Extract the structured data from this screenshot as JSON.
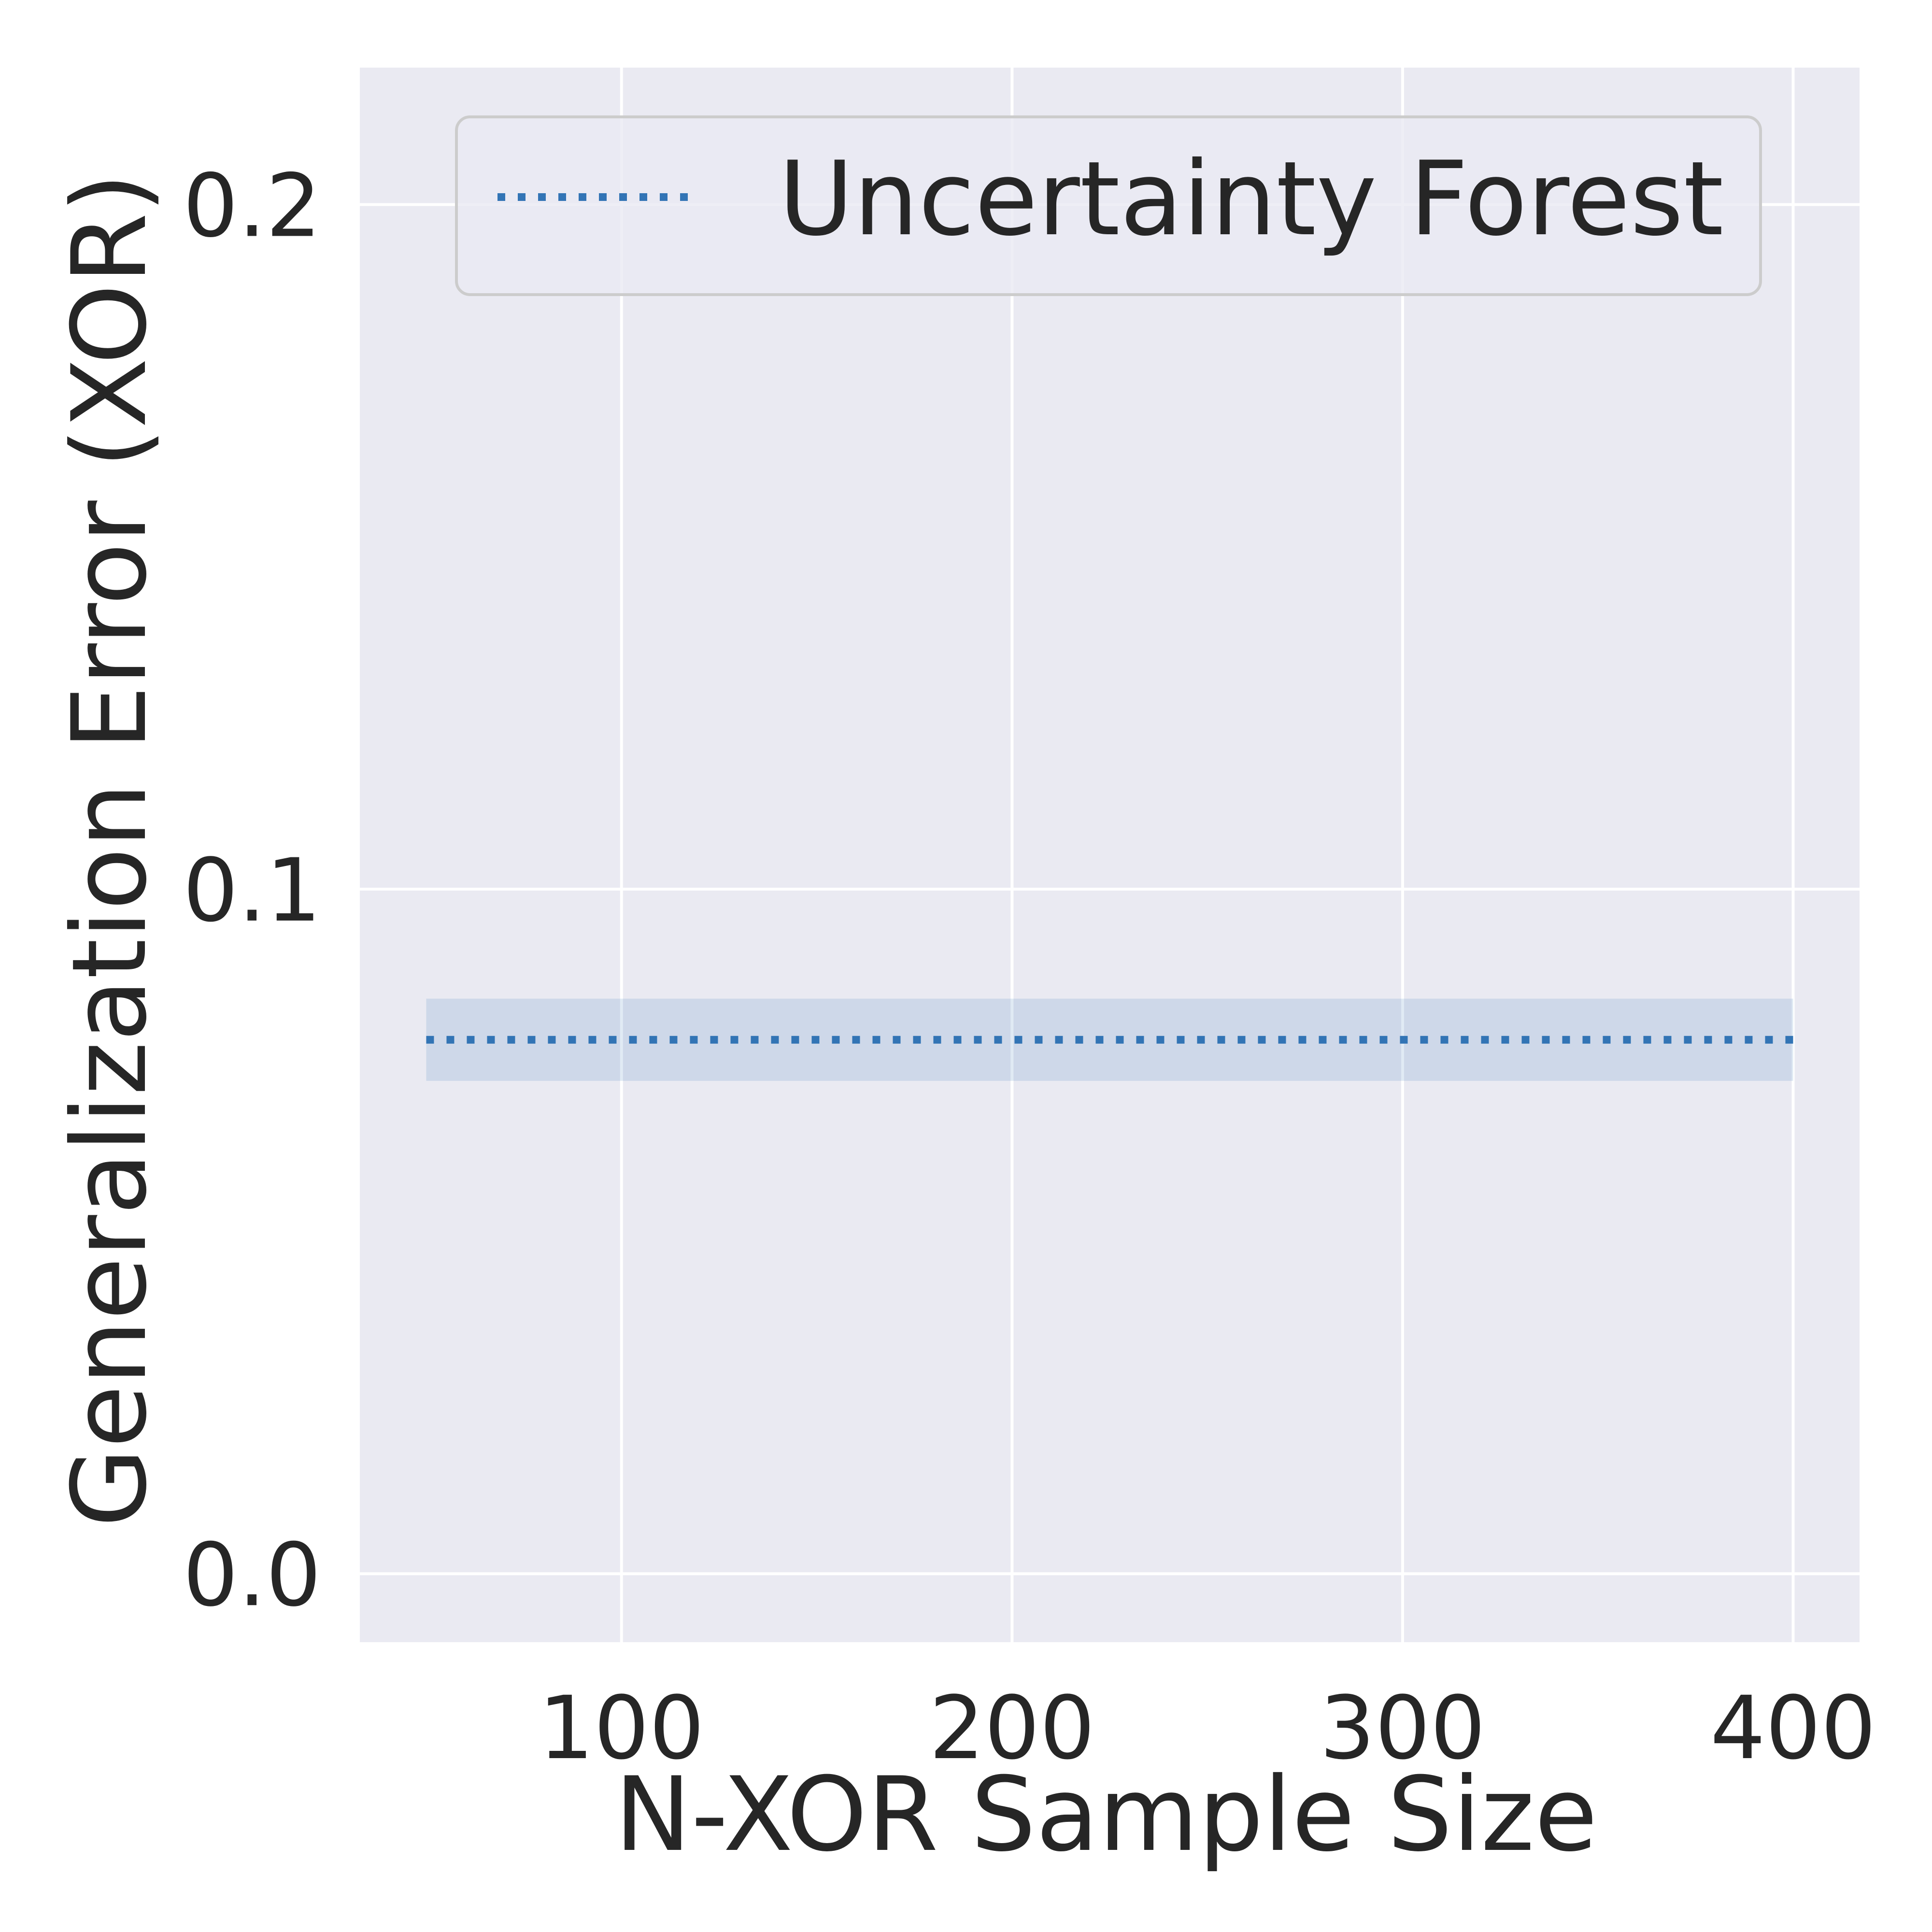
{
  "chart_data": {
    "type": "line",
    "xlabel": "N-XOR Sample Size",
    "ylabel": "Generalization Error (XOR)",
    "xlim": [
      33,
      417
    ],
    "ylim": [
      -0.01,
      0.22
    ],
    "xticks": [
      100,
      200,
      300,
      400
    ],
    "xtick_labels": [
      "100",
      "200",
      "300",
      "400"
    ],
    "yticks": [
      0.0,
      0.1,
      0.2
    ],
    "ytick_labels": [
      "0.0",
      "0.1",
      "0.2"
    ],
    "grid": true,
    "legend_position": "top-right",
    "series": [
      {
        "name": "Uncertainty Forest",
        "style": "dotted",
        "color": "#3274b5",
        "band_color": "#3274b5",
        "x": [
          50,
          400
        ],
        "y": [
          0.078,
          0.078
        ],
        "lower": [
          0.072,
          0.072
        ],
        "upper": [
          0.084,
          0.084
        ]
      }
    ]
  },
  "colors": {
    "plot_background": "#eaeaf2",
    "grid": "#ffffff",
    "text": "#262626"
  }
}
